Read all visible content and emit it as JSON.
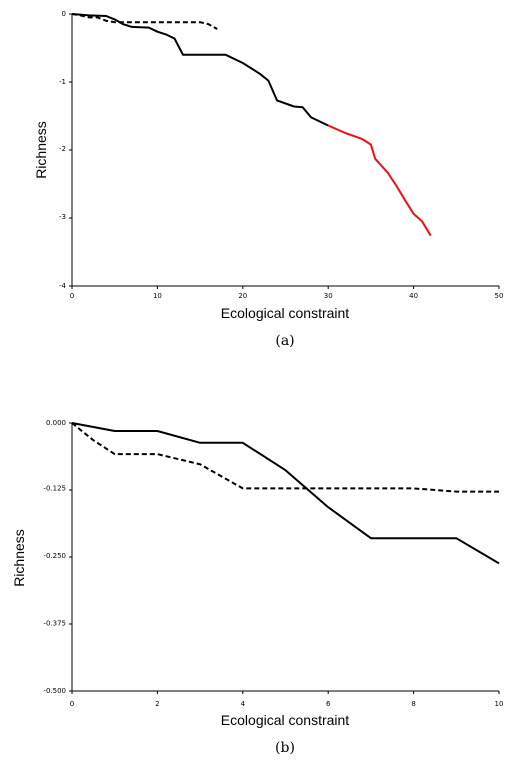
{
  "chart_data": [
    {
      "type": "line",
      "caption": "(a)",
      "xlabel": "Ecological constraint",
      "ylabel": "Richness",
      "xlim": [
        0,
        50
      ],
      "ylim": [
        -4,
        0
      ],
      "xticks": [
        0,
        10,
        20,
        30,
        40,
        50
      ],
      "yticks": [
        0,
        -1,
        -2,
        -3,
        -4
      ],
      "xtick_labels": [
        "0",
        "10",
        "20",
        "30",
        "40",
        "50"
      ],
      "ytick_labels": [
        "0",
        "-1",
        "-2",
        "-3",
        "-4"
      ],
      "grid": false,
      "series": [
        {
          "style": "solid",
          "color": "#000000",
          "points": [
            [
              0,
              0
            ],
            [
              2,
              -0.02
            ],
            [
              4,
              -0.03
            ],
            [
              5,
              -0.08
            ],
            [
              6,
              -0.15
            ],
            [
              7,
              -0.19
            ],
            [
              9,
              -0.2
            ],
            [
              10,
              -0.26
            ],
            [
              11,
              -0.3
            ],
            [
              12,
              -0.36
            ],
            [
              13,
              -0.6
            ],
            [
              18,
              -0.6
            ],
            [
              20,
              -0.72
            ],
            [
              22,
              -0.88
            ],
            [
              23,
              -0.98
            ],
            [
              24,
              -1.27
            ],
            [
              26,
              -1.36
            ],
            [
              27,
              -1.37
            ],
            [
              28,
              -1.52
            ],
            [
              30,
              -1.64
            ]
          ]
        },
        {
          "style": "solid",
          "color": "#ee1111",
          "points": [
            [
              30,
              -1.64
            ],
            [
              32,
              -1.75
            ],
            [
              34,
              -1.84
            ],
            [
              35,
              -1.92
            ],
            [
              35.5,
              -2.13
            ],
            [
              37,
              -2.34
            ],
            [
              38,
              -2.53
            ],
            [
              39,
              -2.74
            ],
            [
              40,
              -2.94
            ],
            [
              41,
              -3.05
            ],
            [
              42,
              -3.26
            ]
          ]
        },
        {
          "style": "dashed",
          "color": "#000000",
          "points": [
            [
              0,
              0
            ],
            [
              1,
              -0.02
            ],
            [
              2,
              -0.05
            ],
            [
              3,
              -0.05
            ],
            [
              4,
              -0.1
            ],
            [
              5,
              -0.12
            ],
            [
              7,
              -0.12
            ],
            [
              9,
              -0.12
            ],
            [
              12,
              -0.12
            ],
            [
              15,
              -0.12
            ],
            [
              16,
              -0.15
            ],
            [
              17,
              -0.22
            ]
          ]
        }
      ]
    },
    {
      "type": "line",
      "caption": "(b)",
      "xlabel": "Ecological constraint",
      "ylabel": "Richness",
      "xlim": [
        0,
        10
      ],
      "ylim": [
        -0.5,
        0
      ],
      "xticks": [
        0,
        2,
        4,
        6,
        8,
        10
      ],
      "yticks": [
        0,
        -0.125,
        -0.25,
        -0.375,
        -0.5
      ],
      "xtick_labels": [
        "0",
        "2",
        "4",
        "6",
        "8",
        "10"
      ],
      "ytick_labels": [
        "0.000",
        "-0.125",
        "-0.250",
        "-0.375",
        "-0.500"
      ],
      "grid": false,
      "series": [
        {
          "style": "solid",
          "color": "#000000",
          "points": [
            [
              0,
              0
            ],
            [
              1,
              -0.015
            ],
            [
              2,
              -0.015
            ],
            [
              3,
              -0.037
            ],
            [
              4,
              -0.037
            ],
            [
              5,
              -0.088
            ],
            [
              6,
              -0.157
            ],
            [
              7,
              -0.215
            ],
            [
              9,
              -0.215
            ],
            [
              10,
              -0.262
            ]
          ]
        },
        {
          "style": "dashed",
          "color": "#000000",
          "points": [
            [
              0,
              0
            ],
            [
              0.5,
              -0.032
            ],
            [
              1,
              -0.058
            ],
            [
              2,
              -0.058
            ],
            [
              3,
              -0.077
            ],
            [
              4,
              -0.122
            ],
            [
              6,
              -0.122
            ],
            [
              8,
              -0.122
            ],
            [
              9,
              -0.128
            ],
            [
              10,
              -0.128
            ]
          ]
        }
      ]
    }
  ]
}
